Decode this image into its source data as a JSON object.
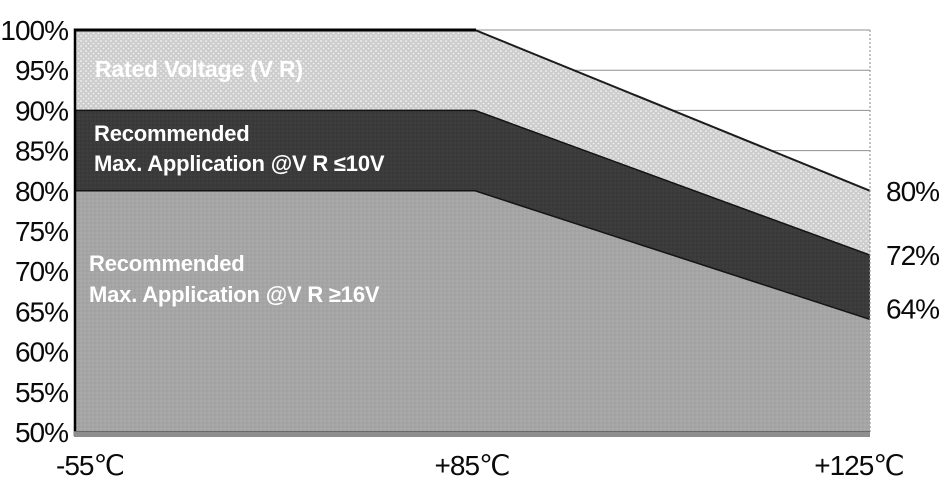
{
  "chart_data": {
    "type": "area",
    "title": "",
    "x": [
      -55,
      85,
      125
    ],
    "x_tick_labels": [
      "-55℃",
      "+85℃",
      "+125℃"
    ],
    "y_axis": {
      "min": 50,
      "max": 100,
      "tick_values": [
        100,
        95,
        90,
        85,
        80,
        75,
        70,
        65,
        60,
        55,
        50
      ],
      "tick_labels": [
        "100%",
        "95%",
        "90%",
        "85%",
        "80%",
        "75%",
        "70%",
        "65%",
        "60%",
        "55%",
        "50%"
      ]
    },
    "grid_values": [
      100,
      95,
      90,
      85
    ],
    "right_axis_labels": [
      {
        "text": "80%",
        "value": 80
      },
      {
        "text": "72%",
        "value": 72
      },
      {
        "text": "64%",
        "value": 64
      }
    ],
    "series": [
      {
        "name": "rated-voltage",
        "label": "Rated Voltage (V R)",
        "upper": [
          100,
          100,
          80
        ],
        "lower": [
          90,
          90,
          72
        ],
        "fill": "#d0d0d0",
        "pattern": "light-dots",
        "edge": "#1c1c1c",
        "edge_width": 2
      },
      {
        "name": "recommended-max-application-le-10v",
        "label": "Recommended Max. Application @V R ≤10V",
        "upper": [
          90,
          90,
          72
        ],
        "lower": [
          80,
          80,
          64
        ],
        "fill": "#3b3b3b",
        "pattern": "dark-tex",
        "edge": "#141414",
        "edge_width": 1.5
      },
      {
        "name": "recommended-max-application-ge-16v",
        "label": "Recommended Max. Application @V R ≥16V",
        "upper": [
          80,
          80,
          64
        ],
        "lower": [
          50,
          50,
          50
        ],
        "fill": "#a6a6a6",
        "pattern": "mid-noise",
        "edge": "#141414",
        "edge_width": 1.5
      }
    ],
    "legend_position": "none",
    "grid": "partial-right-only"
  },
  "area_labels": {
    "rated": "Rated Voltage (V R)",
    "le10_line1": "Recommended",
    "le10_line2": "Max. Application @V R ≤10V",
    "ge16_line1": "Recommended",
    "ge16_line2": "Max. Application @V R ≥16V"
  },
  "colors": {
    "background": "#ffffff",
    "axis_text": "#0a0a0a",
    "axis_line": "#000000",
    "bottom_band": "#8e8e8e",
    "gridline": "#8f8f8f",
    "right_edge": "#9a9a9a",
    "light_area": "#d0d0d0",
    "dark_band": "#3b3b3b",
    "mid_area": "#a6a6a6",
    "label_text": "#ffffff"
  }
}
